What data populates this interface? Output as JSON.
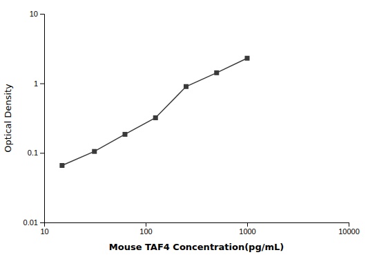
{
  "chart_data": {
    "type": "line",
    "x": [
      15,
      31.25,
      62.5,
      125,
      250,
      500,
      1000
    ],
    "values": [
      0.066,
      0.105,
      0.185,
      0.32,
      0.9,
      1.42,
      2.3
    ],
    "xlabel": "Mouse TAF4 Concentration(pg/mL)",
    "ylabel": "Optical Density",
    "xlim": [
      10,
      10000
    ],
    "ylim": [
      0.01,
      10
    ],
    "xticks": [
      10,
      100,
      1000,
      10000
    ],
    "yticks": [
      0.01,
      0.1,
      1,
      10
    ],
    "log": true,
    "grid": false,
    "color": "#3a3a3a",
    "marker": "square"
  }
}
